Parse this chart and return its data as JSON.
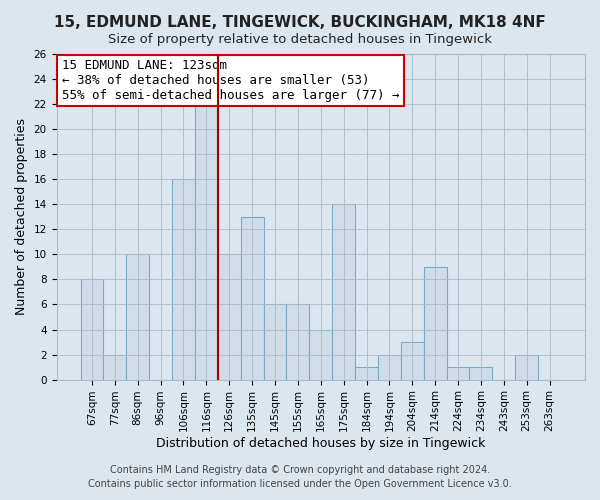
{
  "title": "15, EDMUND LANE, TINGEWICK, BUCKINGHAM, MK18 4NF",
  "subtitle": "Size of property relative to detached houses in Tingewick",
  "xlabel": "Distribution of detached houses by size in Tingewick",
  "ylabel": "Number of detached properties",
  "bar_labels": [
    "67sqm",
    "77sqm",
    "86sqm",
    "96sqm",
    "106sqm",
    "116sqm",
    "126sqm",
    "135sqm",
    "145sqm",
    "155sqm",
    "165sqm",
    "175sqm",
    "184sqm",
    "194sqm",
    "204sqm",
    "214sqm",
    "224sqm",
    "234sqm",
    "243sqm",
    "253sqm",
    "263sqm"
  ],
  "bar_values": [
    8,
    2,
    10,
    0,
    16,
    22,
    10,
    13,
    6,
    6,
    4,
    14,
    1,
    2,
    3,
    9,
    1,
    1,
    0,
    2,
    0
  ],
  "bar_color": "#cfdde8",
  "bar_edge_color": "#7aaac8",
  "ylim": [
    0,
    26
  ],
  "yticks": [
    0,
    2,
    4,
    6,
    8,
    10,
    12,
    14,
    16,
    18,
    20,
    22,
    24,
    26
  ],
  "vline_color": "#aa0000",
  "annotation_text": "15 EDMUND LANE: 123sqm\n← 38% of detached houses are smaller (53)\n55% of semi-detached houses are larger (77) →",
  "annotation_box_color": "#ffffff",
  "annotation_box_edge": "#cc0000",
  "footnote1": "Contains HM Land Registry data © Crown copyright and database right 2024.",
  "footnote2": "Contains public sector information licensed under the Open Government Licence v3.0.",
  "background_color": "#dce6ef",
  "plot_bg_color": "#dce6ef",
  "grid_color": "#aabbcc",
  "title_fontsize": 11,
  "xlabel_fontsize": 9,
  "ylabel_fontsize": 9,
  "tick_fontsize": 7.5,
  "annot_fontsize": 9,
  "footnote_fontsize": 7
}
